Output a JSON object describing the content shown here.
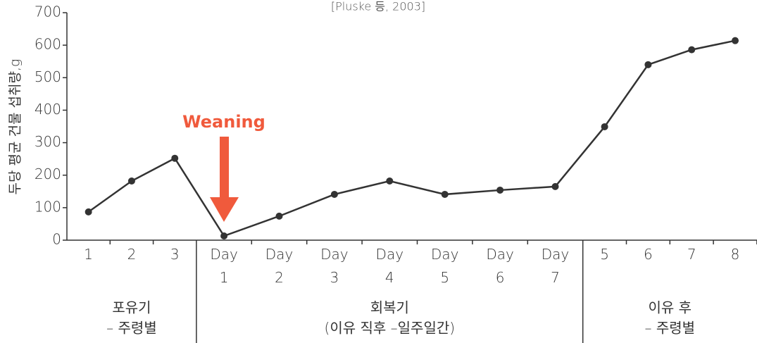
{
  "chart_data": {
    "type": "line",
    "title": "[Pluske 등, 2003]",
    "y_label": "두당 평균 건물 섭취량,g",
    "annotation": "Weaning",
    "color": "#333333",
    "annotation_color": "#f05a3c",
    "ylim": [
      0,
      700
    ],
    "yticks": [
      0,
      100,
      200,
      300,
      400,
      500,
      600,
      700
    ],
    "groups": [
      {
        "name": [
          "포유기",
          "– 주령별"
        ],
        "categories": [
          "1",
          "2",
          "3"
        ],
        "values": [
          87,
          182,
          252
        ]
      },
      {
        "name": [
          "회복기",
          "(이유 직후 –일주일간)"
        ],
        "categories": [
          "Day 1",
          "Day 2",
          "Day 3",
          "Day 4",
          "Day 5",
          "Day 6",
          "Day 7"
        ],
        "values": [
          13,
          74,
          141,
          182,
          141,
          154,
          165
        ]
      },
      {
        "name": [
          "이유 후",
          "– 주령별"
        ],
        "categories": [
          "5",
          "6",
          "7",
          "8"
        ],
        "values": [
          349,
          540,
          586,
          614
        ]
      }
    ]
  }
}
